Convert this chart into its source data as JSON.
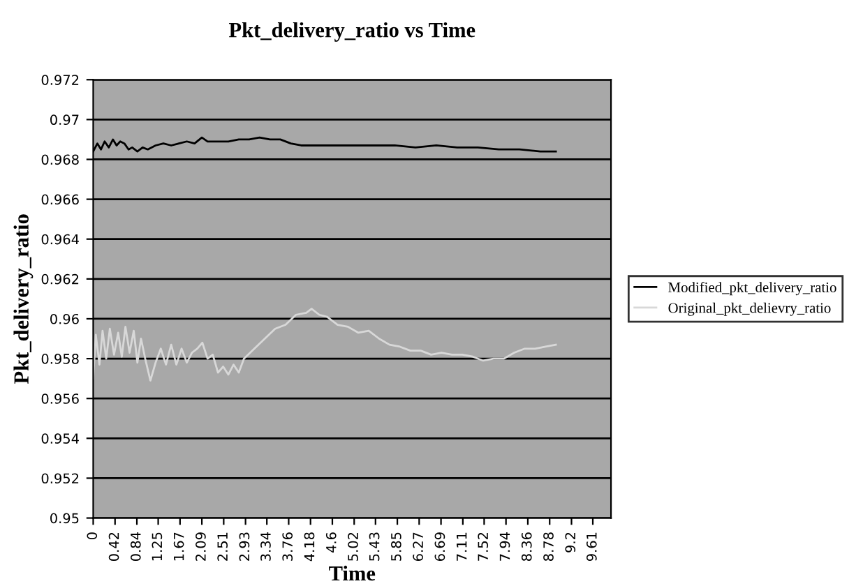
{
  "chart_data": {
    "type": "line",
    "title": "Pkt_delivery_ratio vs Time",
    "xlabel": "Time",
    "ylabel": "Pkt_delivery_ratio",
    "xlim": [
      0,
      9.96
    ],
    "ylim": [
      0.95,
      0.972
    ],
    "xticks": [
      0,
      {
        "value": 0.42,
        "label": "0.42"
      },
      {
        "value": 0.84,
        "label": "0.84"
      },
      1.25,
      1.67,
      2.09,
      2.51,
      2.93,
      3.34,
      3.76,
      4.18,
      4.6,
      5.02,
      5.43,
      5.85,
      6.27,
      6.69,
      7.11,
      7.52,
      7.94,
      8.36,
      8.78,
      9.2,
      9.61
    ],
    "yticks": [
      0.95,
      0.952,
      0.954,
      0.956,
      0.958,
      0.96,
      0.962,
      0.964,
      0.966,
      0.968,
      0.97,
      0.972
    ],
    "grid": "y",
    "legend": "right",
    "marker": "none",
    "line_style": "solid",
    "series": [
      {
        "name": "Modified_pkt_delivery_ratio",
        "color": "#000000",
        "x": [
          0,
          0.08,
          0.15,
          0.22,
          0.3,
          0.38,
          0.45,
          0.52,
          0.6,
          0.68,
          0.75,
          0.85,
          0.95,
          1.05,
          1.2,
          1.35,
          1.5,
          1.65,
          1.8,
          1.95,
          2.09,
          2.2,
          2.4,
          2.6,
          2.8,
          3.0,
          3.2,
          3.4,
          3.6,
          3.8,
          4.0,
          4.3,
          4.6,
          5.0,
          5.4,
          5.8,
          6.2,
          6.6,
          7.0,
          7.4,
          7.8,
          8.2,
          8.6,
          8.9
        ],
        "values": [
          0.9684,
          0.9688,
          0.9685,
          0.9689,
          0.9686,
          0.969,
          0.9687,
          0.9689,
          0.9688,
          0.9685,
          0.9686,
          0.9684,
          0.9686,
          0.9685,
          0.9687,
          0.9688,
          0.9687,
          0.9688,
          0.9689,
          0.9688,
          0.9691,
          0.9689,
          0.9689,
          0.9689,
          0.969,
          0.969,
          0.9691,
          0.969,
          0.969,
          0.9688,
          0.9687,
          0.9687,
          0.9687,
          0.9687,
          0.9687,
          0.9687,
          0.9686,
          0.9687,
          0.9686,
          0.9686,
          0.9685,
          0.9685,
          0.9684,
          0.9684
        ]
      },
      {
        "name": "Original_pkt_delievry_ratio",
        "color": "#d8d8d8",
        "x": [
          0,
          0.05,
          0.12,
          0.18,
          0.25,
          0.32,
          0.4,
          0.48,
          0.55,
          0.62,
          0.7,
          0.78,
          0.85,
          0.92,
          1.0,
          1.1,
          1.2,
          1.3,
          1.4,
          1.5,
          1.6,
          1.7,
          1.8,
          1.9,
          2.0,
          2.1,
          2.2,
          2.3,
          2.4,
          2.5,
          2.6,
          2.7,
          2.8,
          2.9,
          3.1,
          3.3,
          3.5,
          3.7,
          3.9,
          4.1,
          4.2,
          4.35,
          4.5,
          4.7,
          4.9,
          5.1,
          5.3,
          5.5,
          5.7,
          5.9,
          6.1,
          6.3,
          6.5,
          6.7,
          6.9,
          7.1,
          7.3,
          7.5,
          7.7,
          7.9,
          8.1,
          8.3,
          8.5,
          8.7,
          8.9
        ],
        "values": [
          0.957,
          0.9592,
          0.9577,
          0.9594,
          0.958,
          0.9595,
          0.9582,
          0.9593,
          0.9581,
          0.9596,
          0.9583,
          0.9594,
          0.9578,
          0.959,
          0.958,
          0.9569,
          0.9578,
          0.9585,
          0.9577,
          0.9587,
          0.9577,
          0.9585,
          0.9578,
          0.9583,
          0.9585,
          0.9588,
          0.958,
          0.9582,
          0.9573,
          0.9576,
          0.9572,
          0.9577,
          0.9573,
          0.958,
          0.9585,
          0.959,
          0.9595,
          0.9597,
          0.9602,
          0.9603,
          0.9605,
          0.9602,
          0.9601,
          0.9597,
          0.9596,
          0.9593,
          0.9594,
          0.959,
          0.9587,
          0.9586,
          0.9584,
          0.9584,
          0.9582,
          0.9583,
          0.9582,
          0.9582,
          0.9581,
          0.9579,
          0.958,
          0.958,
          0.9583,
          0.9585,
          0.9585,
          0.9586,
          0.9587
        ]
      }
    ]
  }
}
